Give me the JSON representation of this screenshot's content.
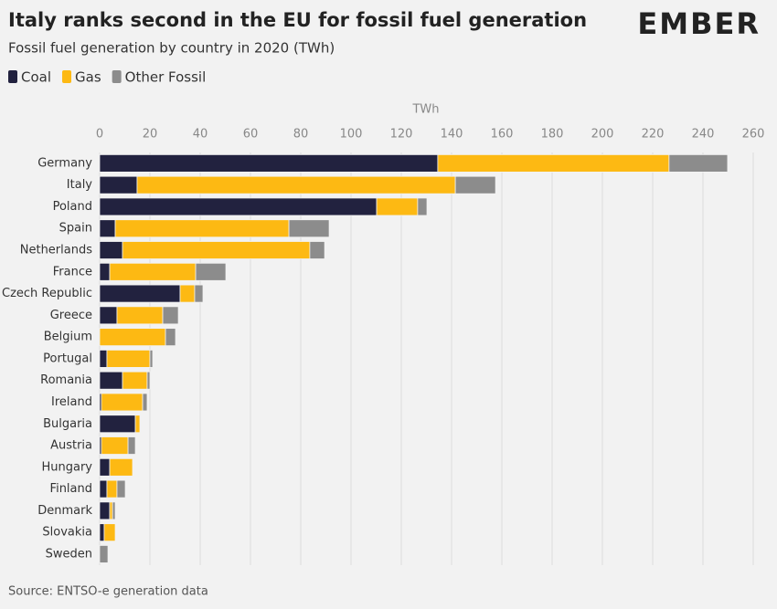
{
  "chart_data": {
    "type": "stacked_barh",
    "title": "Italy ranks second in the EU for fossil fuel generation",
    "subtitle": "Fossil fuel generation by country in 2020 (TWh)",
    "logo": "EMBER",
    "source": "Source: ENTSO-e generation data",
    "x_label": "TWh",
    "categories": [
      "Germany",
      "Italy",
      "Poland",
      "Spain",
      "Netherlands",
      "France",
      "Czech Republic",
      "Greece",
      "Belgium",
      "Portugal",
      "Romania",
      "Ireland",
      "Bulgaria",
      "Austria",
      "Hungary",
      "Finland",
      "Denmark",
      "Slovakia",
      "Sweden"
    ],
    "series": [
      {
        "name": "Coal",
        "color": "#22223f",
        "values": [
          134.5,
          14.9,
          110.2,
          6.2,
          9.1,
          4,
          32,
          6.9,
          0,
          2.9,
          9.1,
          0.7,
          14.2,
          0.7,
          4,
          2.9,
          4,
          1.8,
          0
        ]
      },
      {
        "name": "Gas",
        "color": "#fdb913",
        "values": [
          92,
          126.6,
          16.3,
          69.1,
          74.5,
          34.2,
          5.8,
          18.2,
          26.2,
          17.1,
          9.8,
          16.4,
          1.8,
          10.6,
          9.1,
          4,
          1.1,
          4.4,
          0
        ]
      },
      {
        "name": "Other Fossil",
        "color": "#8c8c8c",
        "values": [
          23.3,
          16,
          3.7,
          16,
          5.9,
          12,
          3.3,
          6.2,
          4,
          1.1,
          1.1,
          1.8,
          0,
          2.9,
          0,
          3.3,
          1.1,
          0,
          3.3
        ]
      }
    ],
    "xlim": [
      0,
      260
    ],
    "xticks": [
      0,
      20,
      40,
      60,
      80,
      100,
      120,
      140,
      160,
      180,
      200,
      220,
      240,
      260
    ],
    "grid": true
  }
}
